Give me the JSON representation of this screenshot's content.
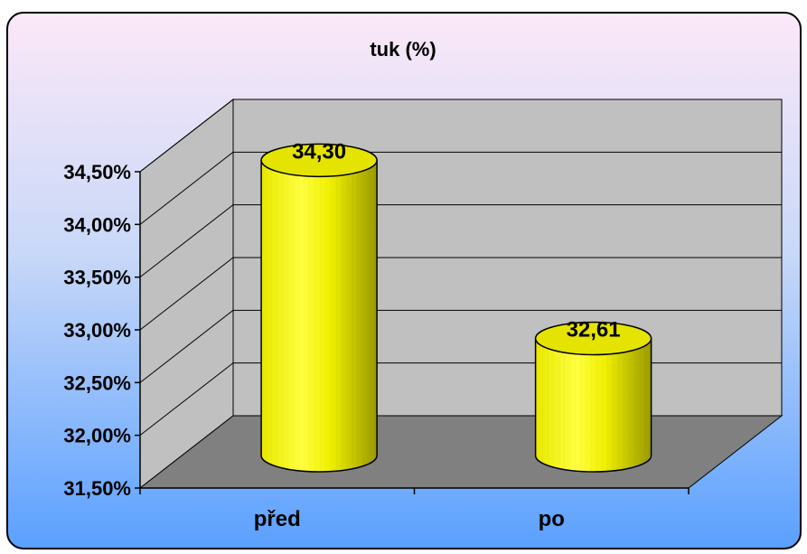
{
  "chart_data": {
    "type": "bar",
    "style": "3d-cylinder",
    "title": "tuk (%)",
    "xlabel": "",
    "ylabel": "",
    "categories": [
      "před",
      "po"
    ],
    "values": [
      34.3,
      32.61
    ],
    "data_labels": [
      "34,30",
      "32,61"
    ],
    "ylim": [
      31.5,
      34.5
    ],
    "yticks": [
      31.5,
      32.0,
      32.5,
      33.0,
      33.5,
      34.0,
      34.5
    ],
    "ytick_labels": [
      "31,50%",
      "32,00%",
      "32,50%",
      "33,00%",
      "33,50%",
      "34,00%",
      "34,50%"
    ],
    "grid": true,
    "legend": "none",
    "colors": {
      "bar": "#ffff00",
      "bar_dark": "#a8a800",
      "wall": "#c0c0c0",
      "floor": "#808080",
      "background_top": "#fce8f8",
      "background_bottom": "#5aa0ff"
    }
  }
}
